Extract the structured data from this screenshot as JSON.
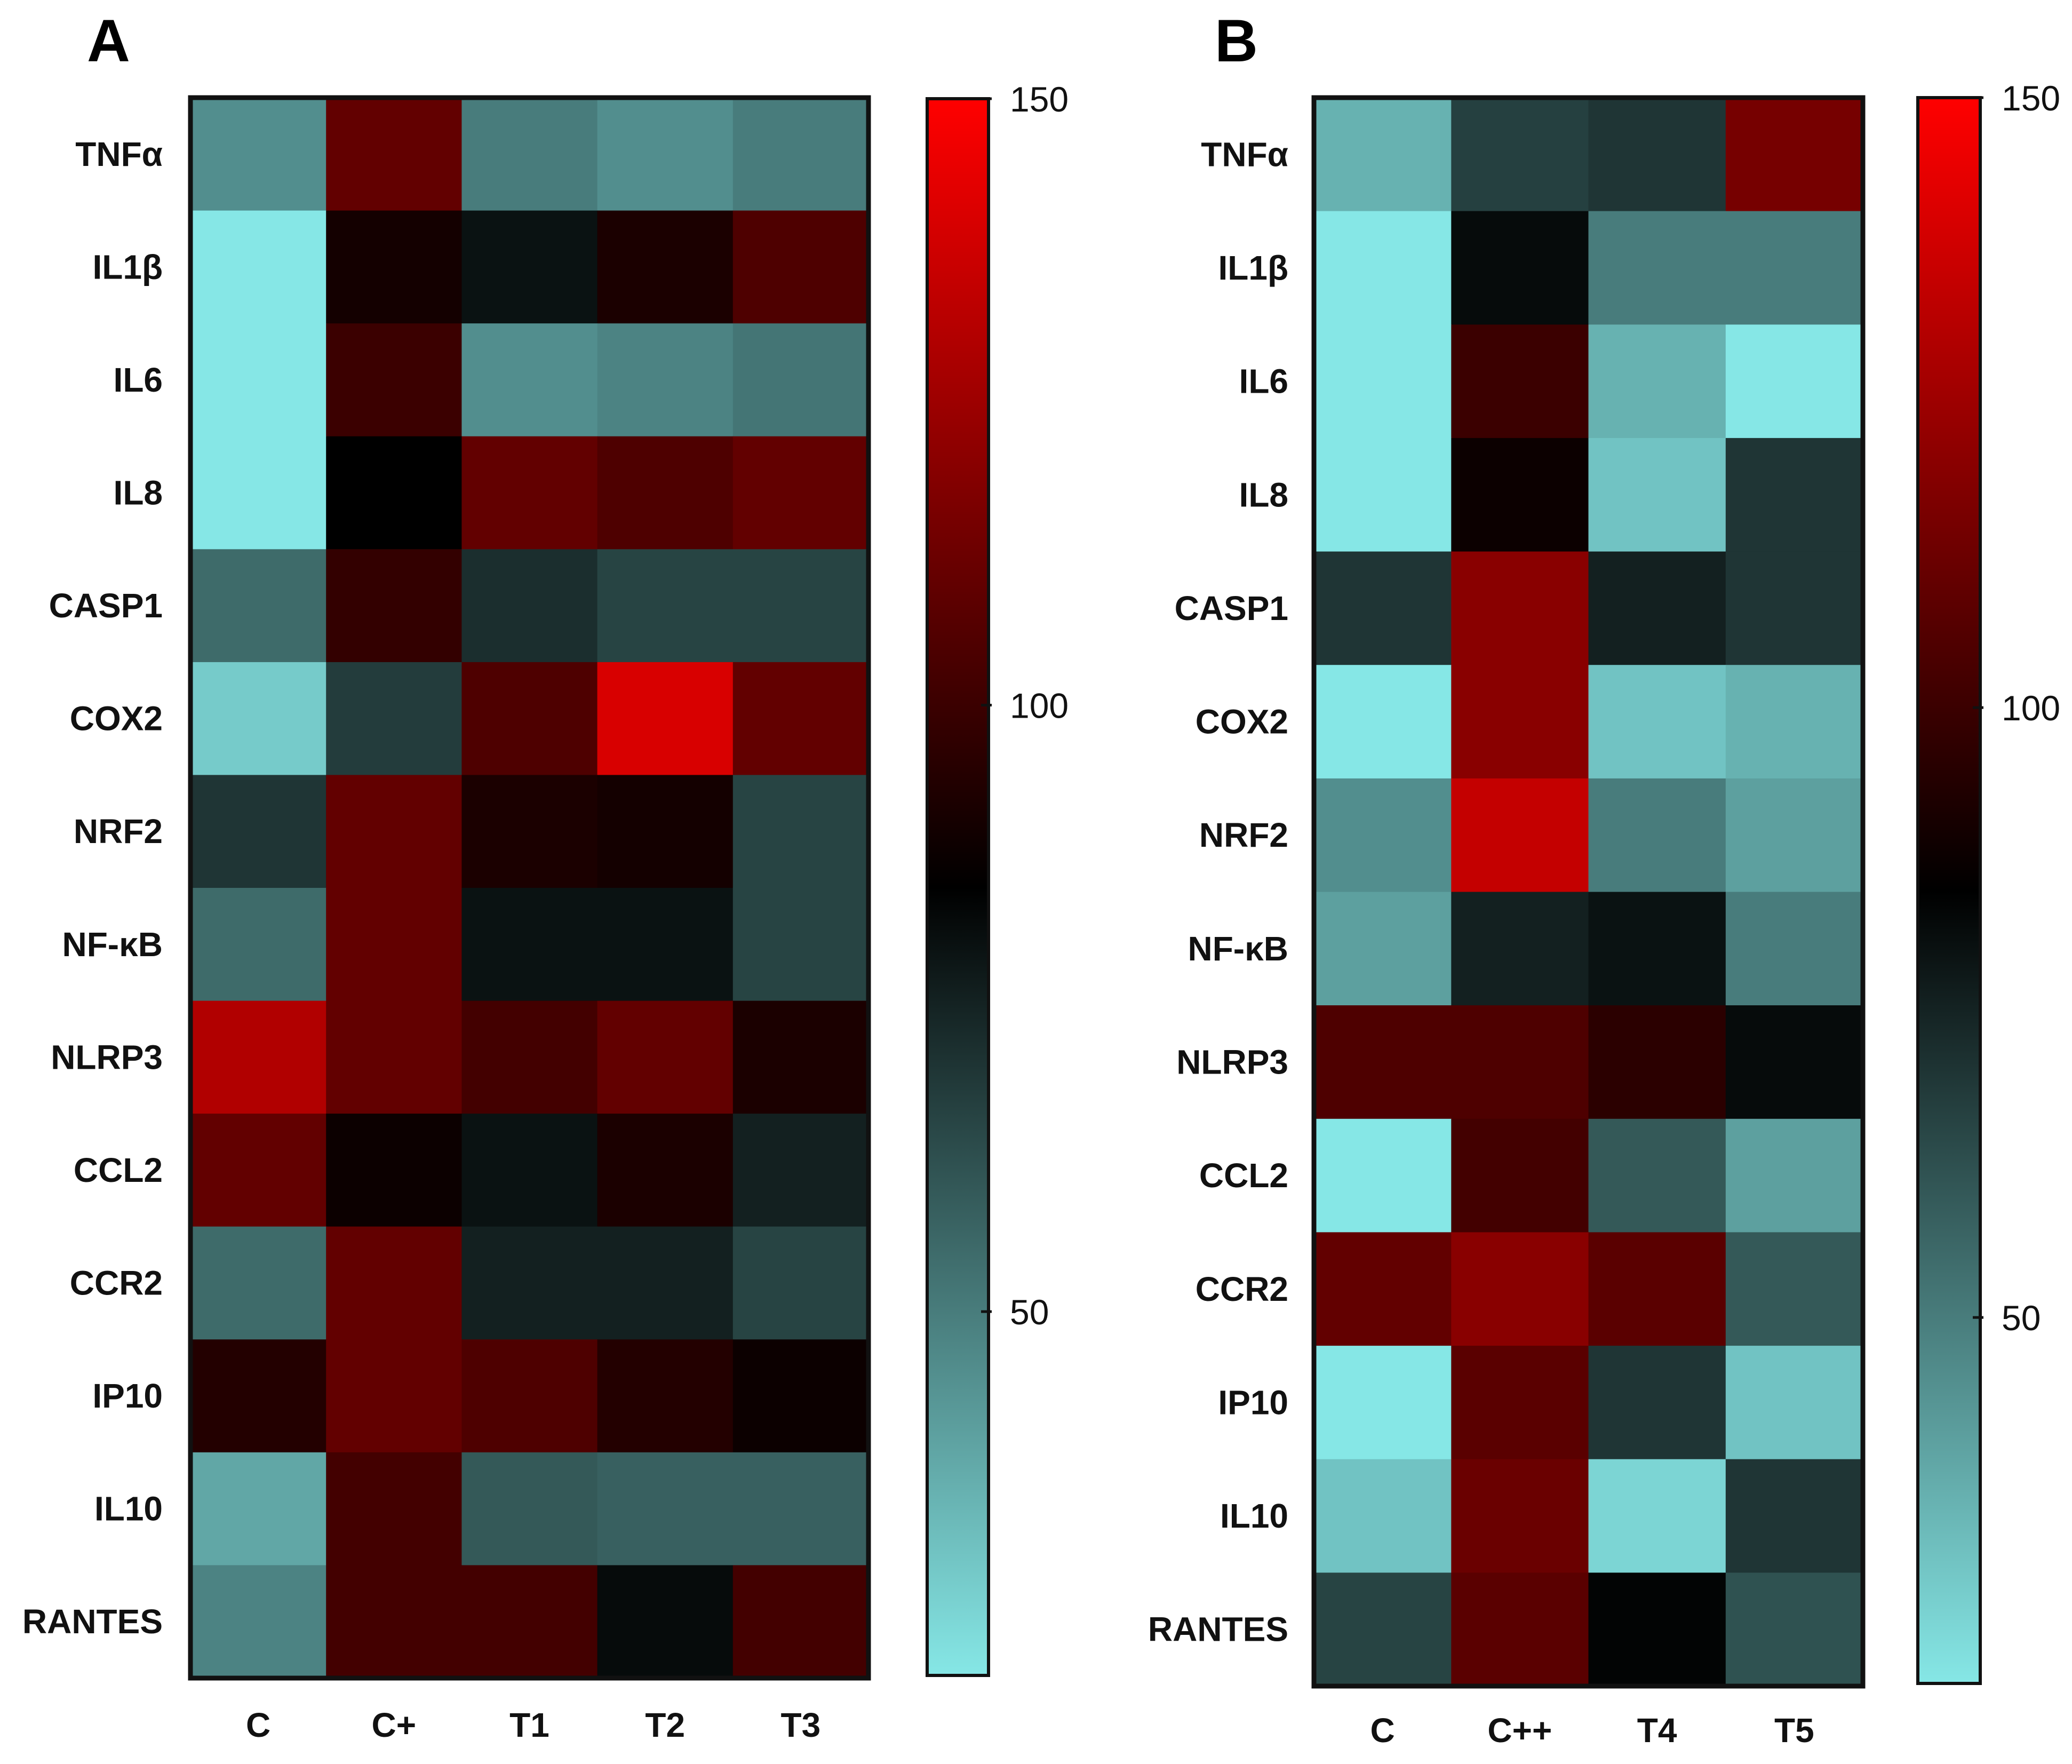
{
  "chart_data": [
    {
      "type": "heatmap",
      "panel": "A",
      "title": "",
      "xlabel": "",
      "ylabel": "",
      "rows": [
        "TNFα",
        "IL1β",
        "IL6",
        "IL8",
        "CASP1",
        "COX2",
        "NRF2",
        "NF-κB",
        "NLRP3",
        "CCL2",
        "CCR2",
        "IP10",
        "IL10",
        "RANTES"
      ],
      "columns": [
        "C",
        "C+",
        "T1",
        "T2",
        "T3"
      ],
      "values": [
        [
          45,
          110,
          50,
          45,
          50
        ],
        [
          10,
          90,
          80,
          92,
          105
        ],
        [
          20,
          100,
          45,
          48,
          52
        ],
        [
          10,
          85,
          110,
          105,
          110
        ],
        [
          55,
          98,
          72,
          66,
          66
        ],
        [
          28,
          68,
          105,
          140,
          110
        ],
        [
          70,
          110,
          92,
          90,
          66
        ],
        [
          55,
          110,
          80,
          80,
          66
        ],
        [
          130,
          110,
          102,
          110,
          92
        ],
        [
          110,
          88,
          80,
          92,
          76
        ],
        [
          55,
          110,
          76,
          76,
          66
        ],
        [
          94,
          110,
          105,
          94,
          88
        ],
        [
          38,
          102,
          60,
          58,
          58
        ],
        [
          48,
          102,
          102,
          82,
          102
        ]
      ],
      "colorbar": {
        "min": 20,
        "max": 150,
        "ticks": [
          "150",
          "100",
          "50"
        ],
        "colors": [
          "#86e7e6",
          "#000000",
          "#ff0000"
        ]
      }
    },
    {
      "type": "heatmap",
      "panel": "B",
      "title": "",
      "xlabel": "",
      "ylabel": "",
      "rows": [
        "TNFα",
        "IL1β",
        "IL6",
        "IL8",
        "CASP1",
        "COX2",
        "NRF2",
        "NF-κB",
        "NLRP3",
        "CCL2",
        "CCR2",
        "IP10",
        "IL10",
        "RANTES"
      ],
      "columns": [
        "C",
        "C++",
        "T4",
        "T5"
      ],
      "values": [
        [
          35,
          67,
          70,
          115
        ],
        [
          20,
          82,
          50,
          50
        ],
        [
          10,
          100,
          35,
          10
        ],
        [
          10,
          88,
          30,
          70
        ],
        [
          70,
          120,
          76,
          70
        ],
        [
          20,
          120,
          30,
          35
        ],
        [
          45,
          135,
          50,
          40
        ],
        [
          40,
          76,
          80,
          50
        ],
        [
          105,
          105,
          96,
          82
        ],
        [
          10,
          102,
          60,
          40
        ],
        [
          110,
          120,
          108,
          60
        ],
        [
          20,
          108,
          70,
          30
        ],
        [
          30,
          112,
          25,
          70
        ],
        [
          66,
          108,
          84,
          62
        ]
      ],
      "colorbar": {
        "min": 20,
        "max": 150,
        "ticks": [
          "150",
          "100",
          "50"
        ],
        "colors": [
          "#86e7e6",
          "#000000",
          "#ff0000"
        ]
      }
    }
  ]
}
